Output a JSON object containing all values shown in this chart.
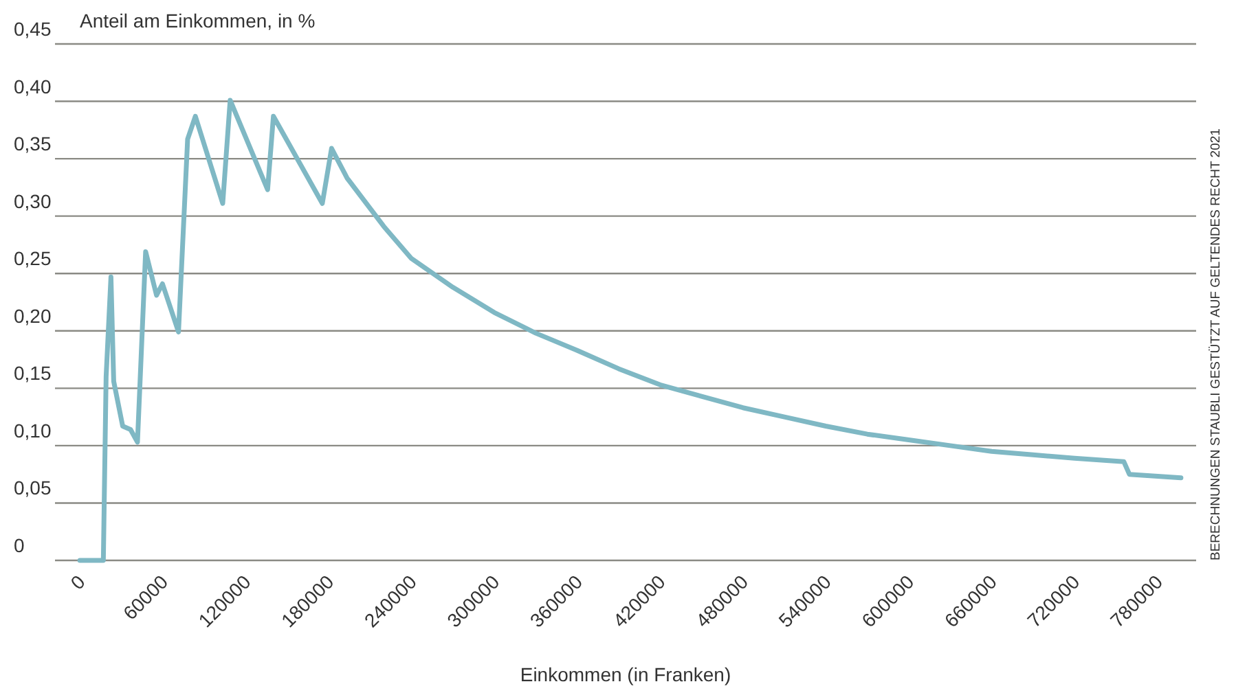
{
  "chart_data": {
    "type": "line",
    "ylabel": "Anteil am Einkommen, in %",
    "xlabel": "Einkommen (in Franken)",
    "annotations": [
      "BERECHNUNGEN STAUBLI GESTÜTZT AUF GELTENDES RECHT 2021"
    ],
    "series": [
      {
        "color": "#7fb8c4",
        "x": [
          0,
          17000,
          19000,
          22500,
          24500,
          31000,
          36700,
          41700,
          47600,
          55500,
          59800,
          71400,
          78000,
          83600,
          103400,
          108800,
          135900,
          140100,
          175500,
          182200,
          193500,
          220000,
          240000,
          270000,
          300000,
          330000,
          360000,
          390000,
          420000,
          450000,
          480000,
          510000,
          540000,
          570000,
          600000,
          630000,
          660000,
          690000,
          720000,
          755700,
          759700,
          797000
        ],
        "values": [
          0,
          0,
          0.16,
          0.247,
          0.156,
          0.117,
          0.114,
          0.103,
          0.269,
          0.231,
          0.241,
          0.199,
          0.367,
          0.387,
          0.311,
          0.401,
          0.323,
          0.387,
          0.311,
          0.359,
          0.333,
          0.291,
          0.263,
          0.238,
          0.216,
          0.198,
          0.183,
          0.167,
          0.153,
          0.143,
          0.133,
          0.125,
          0.117,
          0.11,
          0.105,
          0.1,
          0.095,
          0.092,
          0.089,
          0.086,
          0.075,
          0.072
        ]
      }
    ],
    "xlim": [
      -18000,
      808000
    ],
    "xticks": [
      0,
      60000,
      120000,
      180000,
      240000,
      300000,
      360000,
      420000,
      480000,
      540000,
      600000,
      660000,
      720000,
      780000
    ],
    "ylim": [
      0,
      0.45
    ],
    "yticks": [
      0,
      {
        "value": 0.05,
        "label": "0,05"
      },
      {
        "value": 0.1,
        "label": "0,10"
      },
      {
        "value": 0.15,
        "label": "0,15"
      },
      {
        "value": 0.2,
        "label": "0,20"
      },
      {
        "value": 0.25,
        "label": "0,25"
      },
      {
        "value": 0.3,
        "label": "0,30"
      },
      {
        "value": 0.35,
        "label": "0,35"
      },
      {
        "value": 0.4,
        "label": "0,40"
      },
      {
        "value": 0.45,
        "label": "0,45"
      }
    ],
    "grid": "y",
    "marker": "none",
    "line_style": "solid"
  }
}
